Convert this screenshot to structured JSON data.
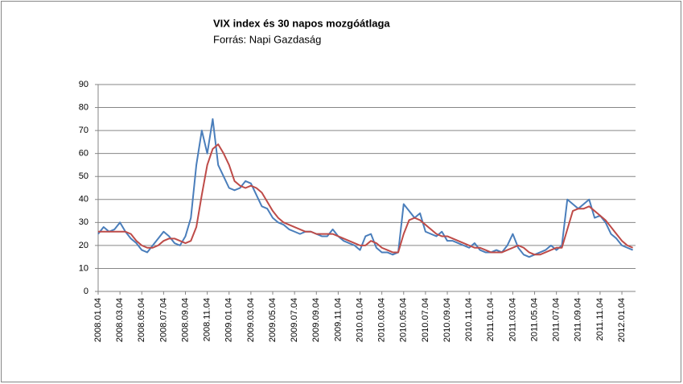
{
  "chart_data": {
    "type": "line",
    "title": "VIX index és 30 napos mozgóátlaga",
    "subtitle": "Forrás: Napi Gazdaság",
    "categories": [
      "2008.01.04",
      null,
      null,
      null,
      "2008.03.04",
      null,
      null,
      null,
      "2008.05.04",
      null,
      null,
      null,
      "2008.07.04",
      null,
      null,
      null,
      "2008.09.04",
      null,
      null,
      null,
      "2008.11.04",
      null,
      null,
      null,
      "2009.01.04",
      null,
      null,
      null,
      "2009.03.04",
      null,
      null,
      null,
      "2009.05.04",
      null,
      null,
      null,
      "2009.07.04",
      null,
      null,
      null,
      "2009.09.04",
      null,
      null,
      null,
      "2009.11.04",
      null,
      null,
      null,
      "2010.01.04",
      null,
      null,
      null,
      "2010.03.04",
      null,
      null,
      null,
      "2010.05.04",
      null,
      null,
      null,
      "2010.07.04",
      null,
      null,
      null,
      "2010.09.04",
      null,
      null,
      null,
      "2010.11.04",
      null,
      null,
      null,
      "2011.01.04",
      null,
      null,
      null,
      "2011.03.04",
      null,
      null,
      null,
      "2011.05.04",
      null,
      null,
      null,
      "2011.07.04",
      null,
      null,
      null,
      "2011.09.04",
      null,
      null,
      null,
      "2011.11.04",
      null,
      null,
      null,
      "2012.01.04",
      null,
      null
    ],
    "series": [
      {
        "color": "#4a7ebb",
        "values": [
          25,
          28,
          26,
          27,
          30,
          26,
          23,
          21,
          18,
          17,
          20,
          23,
          26,
          24,
          21,
          20,
          24,
          32,
          55,
          70,
          60,
          75,
          55,
          50,
          45,
          44,
          45,
          48,
          47,
          42,
          37,
          36,
          32,
          30,
          29,
          27,
          26,
          25,
          26,
          26,
          25,
          24,
          24,
          27,
          24,
          22,
          21,
          20,
          18,
          24,
          25,
          19,
          17,
          17,
          16,
          17,
          38,
          35,
          32,
          34,
          26,
          25,
          24,
          26,
          22,
          22,
          21,
          20,
          19,
          21,
          18,
          17,
          17,
          18,
          17,
          20,
          25,
          19,
          16,
          15,
          16,
          17,
          18,
          20,
          18,
          20,
          40,
          38,
          36,
          38,
          40,
          32,
          33,
          30,
          25,
          23,
          20,
          19,
          18
        ]
      },
      {
        "color": "#be4b48",
        "values": [
          26,
          26,
          26,
          26,
          26,
          26,
          25,
          22,
          20,
          19,
          19,
          20,
          22,
          23,
          23,
          22,
          21,
          22,
          28,
          42,
          55,
          62,
          64,
          60,
          55,
          48,
          46,
          45,
          46,
          45,
          43,
          39,
          35,
          32,
          30,
          29,
          28,
          27,
          26,
          26,
          25,
          25,
          25,
          25,
          24,
          23,
          22,
          21,
          20,
          20,
          22,
          21,
          19,
          18,
          17,
          17,
          25,
          31,
          32,
          31,
          29,
          27,
          25,
          24,
          24,
          23,
          22,
          21,
          20,
          19,
          19,
          18,
          17,
          17,
          17,
          18,
          19,
          20,
          19,
          17,
          16,
          16,
          17,
          18,
          19,
          19,
          27,
          35,
          36,
          36,
          37,
          35,
          33,
          31,
          28,
          25,
          22,
          20,
          19
        ]
      }
    ],
    "ylim": [
      0,
      90
    ],
    "yticks": [
      0,
      10,
      20,
      30,
      40,
      50,
      60,
      70,
      80,
      90
    ],
    "grid": true
  }
}
